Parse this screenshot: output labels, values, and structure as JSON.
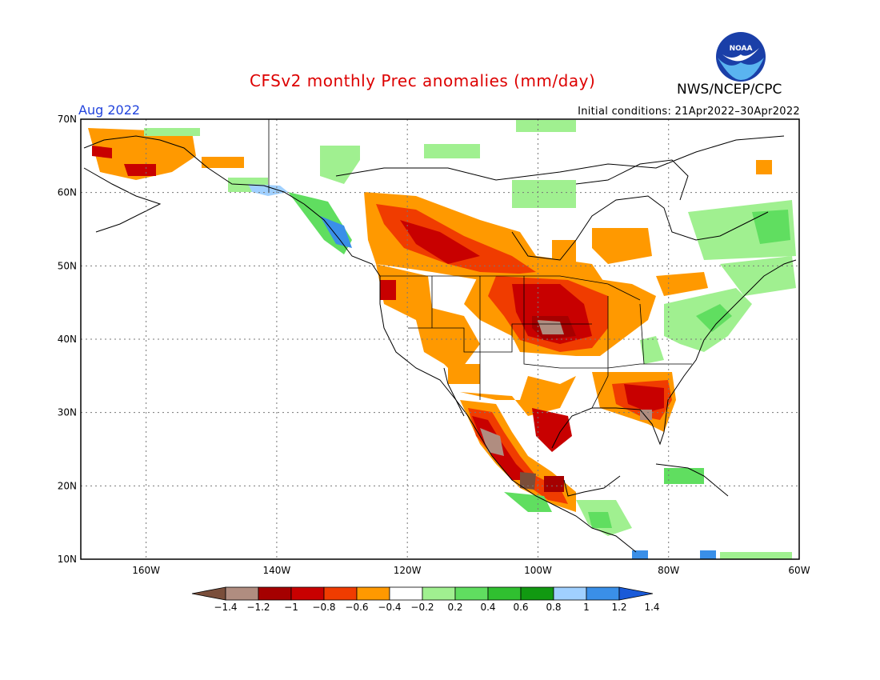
{
  "title": "CFSv2 monthly Prec anomalies (mm/day)",
  "valid_month": "Aug 2022",
  "agency": "NWS/NCEP/CPC",
  "logo_text": "NOAA",
  "initial_conditions": "Initial conditions: 21Apr2022–30Apr2022",
  "map": {
    "lon_range": [
      -170,
      -60
    ],
    "lat_range": [
      10,
      70
    ],
    "lat_labels": [
      "70N",
      "60N",
      "50N",
      "40N",
      "30N",
      "20N",
      "10N"
    ],
    "lon_labels": [
      "160W",
      "140W",
      "120W",
      "100W",
      "80W",
      "60W"
    ],
    "grid": "dotted"
  },
  "legend": {
    "ticks": [
      "−1.4",
      "−1.2",
      "−1",
      "−0.8",
      "−0.6",
      "−0.4",
      "−0.2",
      "0.2",
      "0.4",
      "0.6",
      "0.8",
      "1",
      "1.2",
      "1.4"
    ],
    "colors": [
      "#7a4e3a",
      "#b08d80",
      "#a50000",
      "#c80000",
      "#f03c00",
      "#ff9900",
      "#ffffff",
      "#a0f090",
      "#60de60",
      "#30c030",
      "#119911",
      "#a0d0ff",
      "#3a8fe8",
      "#1a5ad8"
    ]
  }
}
